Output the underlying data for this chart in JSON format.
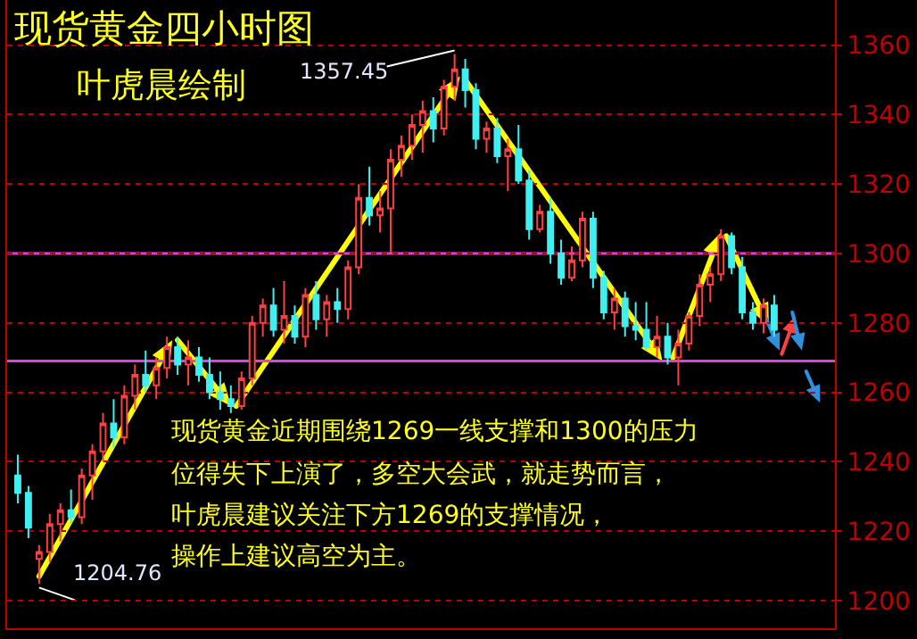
{
  "chart_data": {
    "type": "candlestick",
    "title": "现货黄金四小时图",
    "subtitle": "叶虎晨绘制",
    "categories": [
      null,
      null,
      null,
      null,
      null,
      null,
      null,
      null,
      null,
      null,
      null,
      null,
      null,
      null,
      null,
      null,
      null,
      null,
      null,
      null,
      null,
      null,
      null,
      null,
      null,
      null,
      null,
      null,
      null,
      null,
      null,
      null,
      null,
      null,
      null,
      null,
      null,
      null,
      null,
      null,
      null,
      null,
      null,
      null,
      null,
      null,
      null,
      null,
      null,
      null,
      null,
      null,
      null,
      null,
      null,
      null,
      null,
      null,
      null,
      null,
      null,
      null,
      null,
      null,
      null,
      null,
      null,
      null,
      null,
      null,
      null,
      null
    ],
    "ohlc": [
      [
        1236,
        1242,
        1228,
        1231
      ],
      [
        1231,
        1233,
        1218,
        1221
      ],
      [
        1212,
        1216,
        1204.76,
        1214
      ],
      [
        1214,
        1225,
        1211,
        1222
      ],
      [
        1222,
        1228,
        1217,
        1226
      ],
      [
        1226,
        1232,
        1222,
        1224
      ],
      [
        1224,
        1238,
        1222,
        1236
      ],
      [
        1236,
        1245,
        1229,
        1243
      ],
      [
        1243,
        1254,
        1240,
        1251
      ],
      [
        1251,
        1258,
        1244,
        1247
      ],
      [
        1247,
        1262,
        1245,
        1259
      ],
      [
        1259,
        1268,
        1255,
        1265
      ],
      [
        1265,
        1272,
        1260,
        1262
      ],
      [
        1262,
        1270,
        1258,
        1267
      ],
      [
        1267,
        1276,
        1264,
        1273
      ],
      [
        1273,
        1276,
        1265,
        1268
      ],
      [
        1268,
        1275,
        1262,
        1270
      ],
      [
        1270,
        1273,
        1263,
        1265
      ],
      [
        1265,
        1270,
        1258,
        1260
      ],
      [
        1260,
        1266,
        1255,
        1258
      ],
      [
        1258,
        1262,
        1254,
        1256
      ],
      [
        1256,
        1266,
        1255,
        1264
      ],
      [
        1264,
        1282,
        1262,
        1280
      ],
      [
        1280,
        1287,
        1276,
        1285
      ],
      [
        1285,
        1290,
        1276,
        1278
      ],
      [
        1278,
        1292,
        1274,
        1282
      ],
      [
        1282,
        1285,
        1274,
        1276
      ],
      [
        1276,
        1290,
        1273,
        1288
      ],
      [
        1288,
        1292,
        1278,
        1281
      ],
      [
        1281,
        1288,
        1276,
        1286
      ],
      [
        1286,
        1290,
        1280,
        1284
      ],
      [
        1284,
        1298,
        1281,
        1296
      ],
      [
        1296,
        1320,
        1294,
        1316
      ],
      [
        1316,
        1325,
        1308,
        1311
      ],
      [
        1311,
        1318,
        1306,
        1313
      ],
      [
        1313,
        1330,
        1300,
        1327
      ],
      [
        1327,
        1334,
        1322,
        1331
      ],
      [
        1331,
        1340,
        1327,
        1337
      ],
      [
        1337,
        1344,
        1329,
        1341
      ],
      [
        1341,
        1345,
        1332,
        1336
      ],
      [
        1336,
        1350,
        1334,
        1348
      ],
      [
        1348,
        1357.45,
        1344,
        1353
      ],
      [
        1353,
        1356,
        1342,
        1347
      ],
      [
        1347,
        1349,
        1330,
        1333
      ],
      [
        1333,
        1338,
        1329,
        1336
      ],
      [
        1336,
        1339,
        1326,
        1328
      ],
      [
        1328,
        1333,
        1318,
        1330
      ],
      [
        1330,
        1337,
        1320,
        1321
      ],
      [
        1321,
        1324,
        1304,
        1307
      ],
      [
        1307,
        1314,
        1306,
        1312
      ],
      [
        1312,
        1316,
        1297,
        1300
      ],
      [
        1300,
        1304,
        1291,
        1293
      ],
      [
        1293,
        1302,
        1292,
        1298
      ],
      [
        1298,
        1312,
        1296,
        1310
      ],
      [
        1310,
        1312,
        1290,
        1293
      ],
      [
        1293,
        1295,
        1281,
        1283
      ],
      [
        1283,
        1290,
        1278,
        1287
      ],
      [
        1287,
        1289,
        1276,
        1279
      ],
      [
        1279,
        1286,
        1275,
        1278
      ],
      [
        1278,
        1286,
        1272,
        1273
      ],
      [
        1273,
        1282,
        1270,
        1276
      ],
      [
        1276,
        1280,
        1268,
        1270
      ],
      [
        1270,
        1278,
        1262,
        1274
      ],
      [
        1274,
        1283,
        1272,
        1282
      ],
      [
        1282,
        1294,
        1279,
        1291
      ],
      [
        1291,
        1296,
        1286,
        1294
      ],
      [
        1294,
        1307,
        1292,
        1305
      ],
      [
        1305,
        1306,
        1294,
        1296
      ],
      [
        1296,
        1299,
        1281,
        1283
      ],
      [
        1283,
        1286,
        1278,
        1280
      ],
      [
        1280,
        1287,
        1277,
        1285
      ],
      [
        1285,
        1288,
        1276,
        1278
      ]
    ],
    "ylim": [
      1192,
      1373
    ],
    "yticks": [
      1200,
      1220,
      1240,
      1260,
      1280,
      1300,
      1320,
      1340,
      1360
    ],
    "ref_lines": [
      {
        "axis": "y",
        "value": 1300,
        "color": "#e040e0"
      },
      {
        "axis": "y",
        "value": 1269,
        "color": "#e040e0"
      }
    ],
    "annotations": [
      "1357.45",
      "1204.76",
      "现货黄金近期围绕1269一线支撑和1300的压力",
      "位得失下上演了，多空大会武，就走势而言，",
      "叶虎晨建议关注下方1269的支撑情况，",
      "操作上建议高空为主。"
    ],
    "grid": "y",
    "tick_labels": "y",
    "legend": false
  }
}
